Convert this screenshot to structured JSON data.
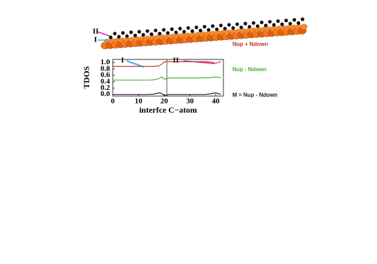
{
  "chart_data": {
    "type": "line",
    "y_label": "TDOS",
    "x_label": "interfce C−atom",
    "annotations": [
      "I",
      "II"
    ],
    "structure_labels": [
      "II",
      "I"
    ],
    "x": [
      0,
      2,
      4,
      6,
      8,
      10,
      12,
      14,
      16,
      18,
      19,
      20,
      22,
      24,
      26,
      28,
      30,
      32,
      34,
      36,
      38,
      40,
      42
    ],
    "series": [
      {
        "name": "Nup + Ndown",
        "color": "#c0302a",
        "values": [
          0.88,
          0.88,
          0.88,
          0.88,
          0.88,
          0.88,
          0.88,
          0.88,
          0.88,
          0.9,
          0.95,
          1.02,
          1.03,
          1.03,
          1.03,
          1.03,
          1.03,
          1.03,
          1.03,
          1.03,
          1.02,
          0.98,
          1.03
        ]
      },
      {
        "name": "Nup - Ndown",
        "color": "#4cae3c",
        "values": [
          0.45,
          0.45,
          0.45,
          0.45,
          0.45,
          0.45,
          0.45,
          0.45,
          0.46,
          0.5,
          0.55,
          0.48,
          0.52,
          0.52,
          0.52,
          0.52,
          0.52,
          0.52,
          0.52,
          0.52,
          0.53,
          0.55,
          0.52
        ]
      },
      {
        "name": "M = Nup - Ndown",
        "color": "#222222",
        "values": [
          0.0,
          0.0,
          0.0,
          0.0,
          0.0,
          0.0,
          0.0,
          0.0,
          0.01,
          0.05,
          0.03,
          -0.03,
          0.0,
          0.0,
          0.0,
          0.0,
          0.0,
          0.0,
          0.0,
          0.0,
          0.02,
          0.05,
          0.0
        ]
      }
    ],
    "divider_x": 21,
    "xlim": [
      0,
      43
    ],
    "xticks": [
      0,
      10,
      20,
      30,
      40
    ],
    "ylim": [
      -0.05,
      1.1
    ],
    "yticks": [
      {
        "value": 0,
        "label": "0.0"
      },
      {
        "value": 0.2,
        "label": "0.2"
      },
      {
        "value": 0.4,
        "label": "0.4"
      },
      {
        "value": 0.6,
        "label": "0.6"
      },
      {
        "value": 0.8,
        "label": "0.8"
      },
      {
        "value": 1,
        "label": "1.0"
      }
    ]
  }
}
